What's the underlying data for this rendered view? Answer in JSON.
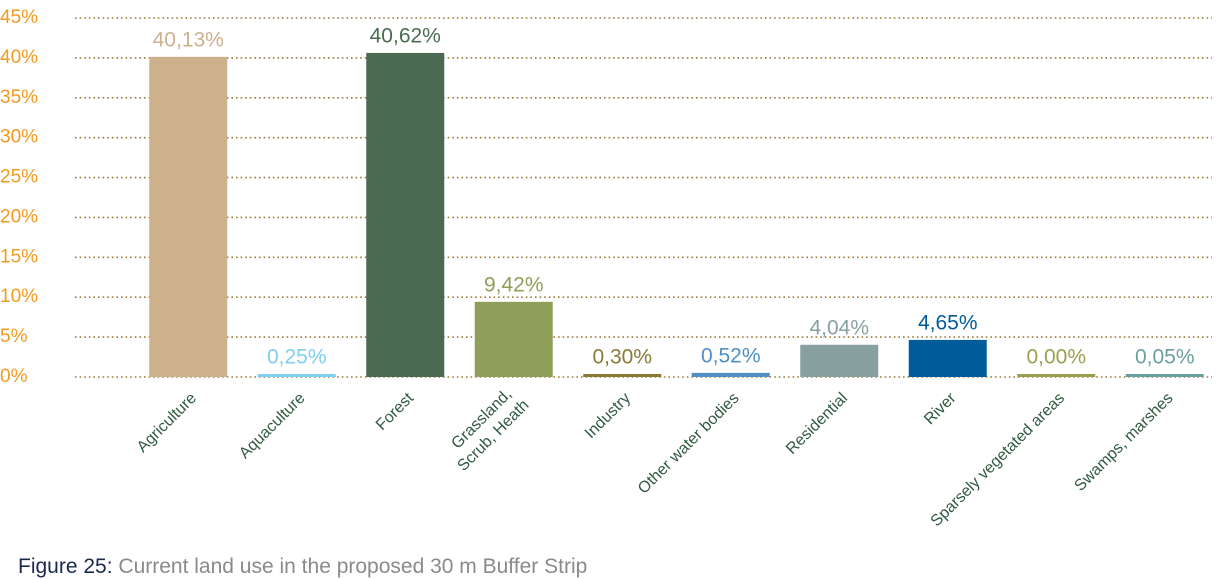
{
  "chart_data": {
    "type": "bar",
    "categories": [
      "Agriculture",
      "Aquaculture",
      "Forest",
      "Grassland, Scrub, Heath",
      "Industry",
      "Other water bodies",
      "Residential",
      "River",
      "Sparsely vegetated areas",
      "Swamps, marshes"
    ],
    "values": [
      40.13,
      0.25,
      40.62,
      9.42,
      0.3,
      0.52,
      4.04,
      4.65,
      0.0,
      0.05
    ],
    "value_labels": [
      "40,13%",
      "0,25%",
      "40,62%",
      "9,42%",
      "0,30%",
      "0,52%",
      "4,04%",
      "4,65%",
      "0,00%",
      "0,05%"
    ],
    "colors": [
      "#cdb08c",
      "#7fcfee",
      "#4a6b51",
      "#8f9e58",
      "#8a7a35",
      "#4f8fc7",
      "#88a0a0",
      "#005b9a",
      "#9aa050",
      "#6a9fa0"
    ],
    "ylim": [
      0,
      45
    ],
    "yticks": [
      {
        "value": 0,
        "label": "0%"
      },
      {
        "value": 5,
        "label": "5%"
      },
      {
        "value": 10,
        "label": "10%"
      },
      {
        "value": 15,
        "label": "15%"
      },
      {
        "value": 20,
        "label": "20%"
      },
      {
        "value": 25,
        "label": "25%"
      },
      {
        "value": 30,
        "label": "30%"
      },
      {
        "value": 35,
        "label": "35%"
      },
      {
        "value": 40,
        "label": "40%"
      },
      {
        "value": 45,
        "label": "45%"
      }
    ],
    "grid": true,
    "caption": {
      "label": "Figure 25:",
      "text": "Current land use in the proposed 30 m Buffer Strip"
    }
  }
}
